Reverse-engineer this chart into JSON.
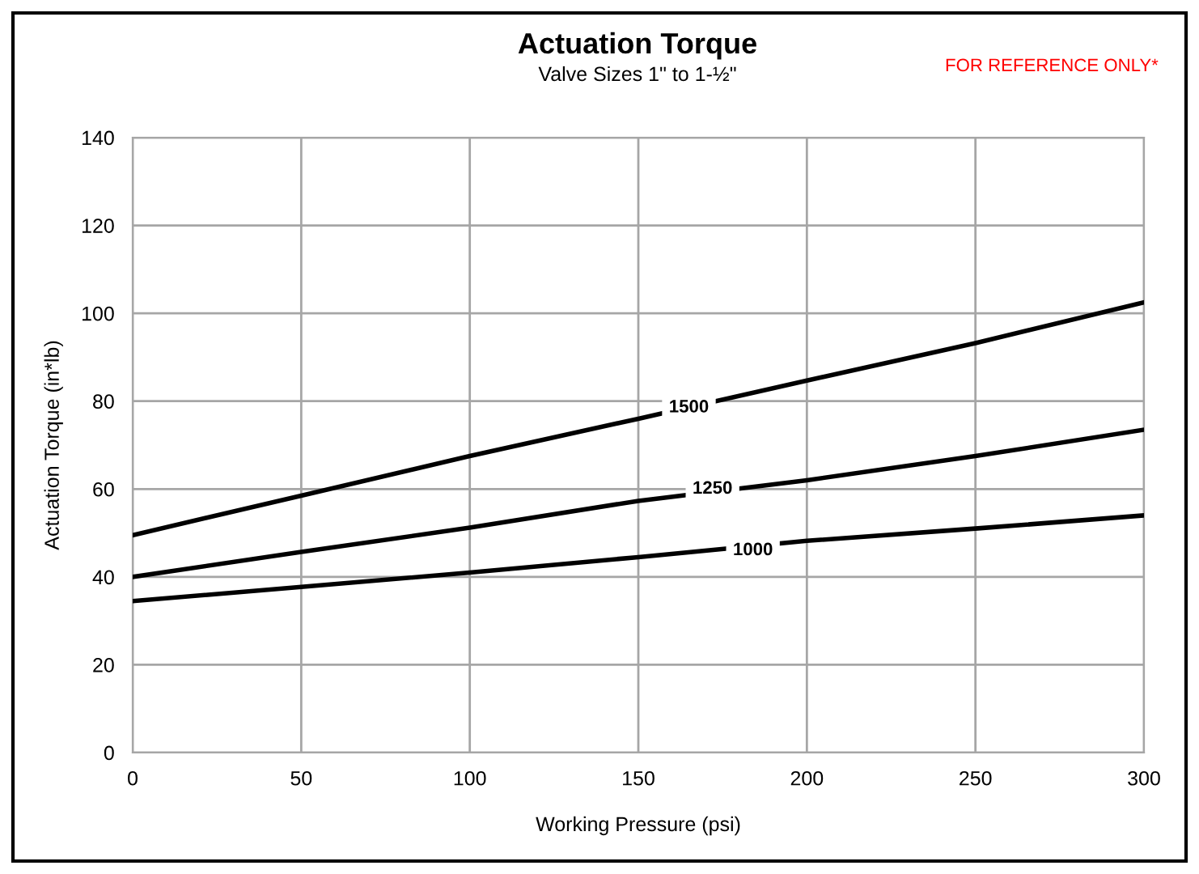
{
  "chart_data": {
    "type": "line",
    "title": "Actuation Torque",
    "subtitle": "Valve Sizes 1\" to 1-½\"",
    "xlabel": "Working Pressure (psi)",
    "ylabel": "Actuation Torque (in*lb)",
    "x": [
      0,
      50,
      100,
      150,
      200,
      250,
      300
    ],
    "series": [
      {
        "color": "#000000",
        "values": [
          49.5,
          58.5,
          67.5,
          76,
          84.7,
          93.2,
          102.5
        ]
      },
      {
        "color": "#000000",
        "values": [
          40,
          45.7,
          51.2,
          57.3,
          62,
          67.5,
          73.5
        ]
      },
      {
        "color": "#000000",
        "values": [
          34.5,
          37.7,
          41,
          44.5,
          48.2,
          51,
          54
        ]
      }
    ],
    "annotations": [
      "FOR REFERENCE ONLY*",
      {
        "text": "1500",
        "x": 165,
        "y": 78.5
      },
      {
        "text": "1250",
        "x": 172,
        "y": 60
      },
      {
        "text": "1000",
        "x": 184,
        "y": 46
      }
    ],
    "xlim": [
      0,
      300
    ],
    "xticks": [
      0,
      50,
      100,
      150,
      200,
      250,
      300
    ],
    "ylim": [
      0,
      140
    ],
    "yticks": [
      0,
      20,
      40,
      60,
      80,
      100,
      120,
      140
    ],
    "grid": true,
    "marker": "none",
    "line_style": "solid"
  }
}
